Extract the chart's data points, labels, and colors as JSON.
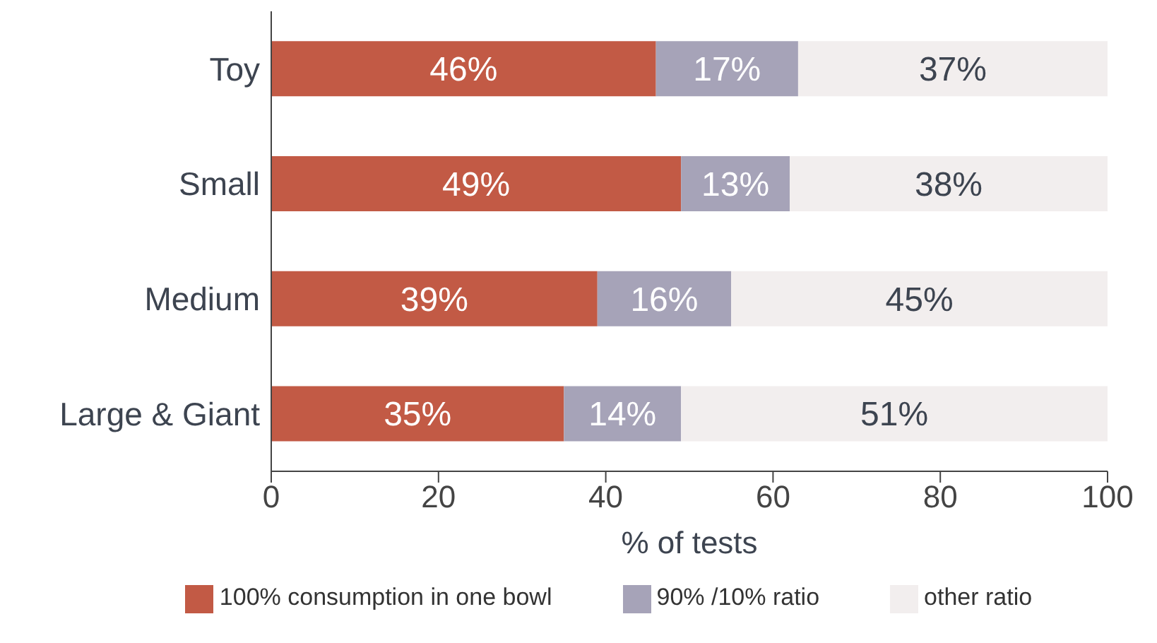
{
  "chart_data": {
    "type": "bar",
    "orientation": "horizontal",
    "stacked": true,
    "categories": [
      "Toy",
      "Small",
      "Medium",
      "Large & Giant"
    ],
    "series": [
      {
        "name": "100% consumption in one bowl",
        "color": "#c25a45",
        "values": [
          46,
          49,
          39,
          35
        ],
        "value_labels": [
          "46%",
          "49%",
          "39%",
          "35%"
        ]
      },
      {
        "name": "90% /10% ratio",
        "color": "#a6a3b8",
        "values": [
          17,
          13,
          16,
          14
        ],
        "value_labels": [
          "17%",
          "13%",
          "16%",
          "14%"
        ]
      },
      {
        "name": "other ratio",
        "color": "#f2eeee",
        "values": [
          37,
          38,
          45,
          51
        ],
        "value_labels": [
          "37%",
          "38%",
          "45%",
          "51%"
        ]
      }
    ],
    "xlabel": "% of tests",
    "xlim": [
      0,
      100
    ],
    "xticks": [
      0,
      20,
      40,
      60,
      80,
      100
    ],
    "grid": false,
    "legend": "bottom"
  }
}
